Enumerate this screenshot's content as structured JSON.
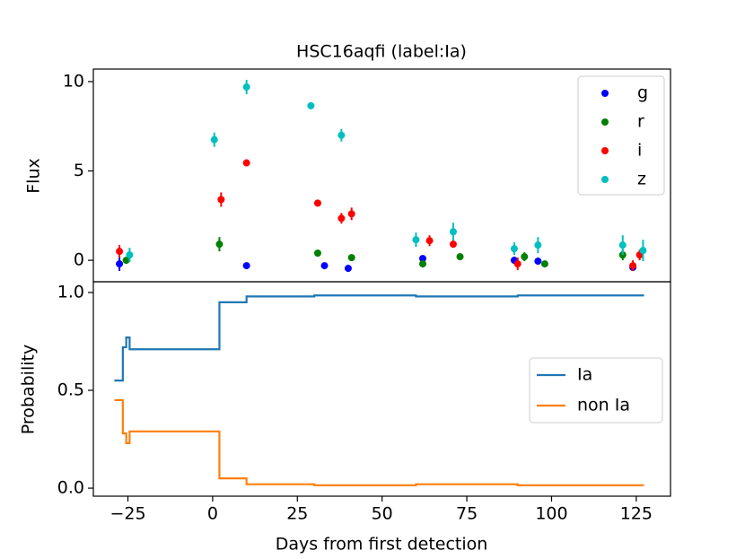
{
  "chart_data": [
    {
      "type": "scatter",
      "title": "HSC16aqfi (label:Ia)",
      "ylabel": "Flux",
      "xlim": [
        -35.2,
        135.1
      ],
      "ylim": [
        -1.2,
        10.7
      ],
      "yticks": [
        0,
        5,
        10
      ],
      "legend": "upper right",
      "series": [
        {
          "name": "g",
          "color": "#0000ff",
          "x": [
            -27.5,
            10,
            33,
            40,
            62,
            89,
            96,
            124
          ],
          "values": [
            -0.2,
            -0.3,
            -0.3,
            -0.45,
            0.1,
            0.0,
            -0.05,
            -0.4
          ],
          "errors": [
            0.4,
            0.1,
            0.15,
            0.2,
            0.15,
            0.2,
            0.2,
            0.2
          ]
        },
        {
          "name": "r",
          "color": "#008000",
          "x": [
            -25.5,
            2,
            31,
            41,
            62,
            73,
            92,
            98,
            121
          ],
          "values": [
            0.0,
            0.9,
            0.4,
            0.15,
            -0.2,
            0.2,
            0.2,
            -0.2,
            0.3
          ],
          "errors": [
            0.1,
            0.4,
            0.15,
            0.15,
            0.2,
            0.15,
            0.25,
            0.15,
            0.3
          ]
        },
        {
          "name": "i",
          "color": "#ff0000",
          "x": [
            -27.5,
            2.5,
            10,
            31,
            38,
            41,
            64,
            71,
            90,
            124,
            126
          ],
          "values": [
            0.5,
            3.4,
            5.45,
            3.2,
            2.35,
            2.6,
            1.1,
            0.9,
            -0.2,
            -0.3,
            0.3
          ],
          "errors": [
            0.35,
            0.4,
            0.1,
            0.15,
            0.3,
            0.35,
            0.3,
            0.2,
            0.35,
            0.3,
            0.3
          ]
        },
        {
          "name": "z",
          "color": "#00bfbf",
          "x": [
            -24.5,
            0.5,
            10,
            29,
            38,
            60,
            71,
            89,
            96,
            121,
            127
          ],
          "values": [
            0.3,
            6.75,
            9.7,
            8.65,
            7.0,
            1.15,
            1.6,
            0.65,
            0.85,
            0.85,
            0.55
          ],
          "errors": [
            0.4,
            0.4,
            0.4,
            0.2,
            0.35,
            0.4,
            0.5,
            0.35,
            0.45,
            0.55,
            0.6
          ]
        }
      ]
    },
    {
      "type": "step",
      "xlabel": "Days from first detection",
      "ylabel": "Probability",
      "xlim": [
        -35.2,
        135.1
      ],
      "xticks": [
        {
          "value": -25,
          "label": "−25"
        },
        0,
        25,
        50,
        75,
        100,
        125
      ],
      "ylim": [
        -0.041,
        1.055
      ],
      "yticks": [
        {
          "value": 0,
          "label": "0.0"
        },
        {
          "value": 0.5,
          "label": "0.5"
        },
        {
          "value": 1,
          "label": "1.0"
        }
      ],
      "legend": "center right",
      "x": [
        -29,
        -26.5,
        -25.5,
        -24.5,
        2,
        10,
        30,
        60,
        90,
        127
      ],
      "series": [
        {
          "name": "Ia",
          "color": "#1f77b4",
          "values": [
            0.55,
            0.72,
            0.77,
            0.71,
            0.95,
            0.98,
            0.985,
            0.98,
            0.985,
            0.98
          ]
        },
        {
          "name": "non Ia",
          "color": "#ff7f0e",
          "values": [
            0.45,
            0.28,
            0.23,
            0.29,
            0.05,
            0.02,
            0.015,
            0.02,
            0.015,
            0.02
          ]
        }
      ]
    }
  ]
}
